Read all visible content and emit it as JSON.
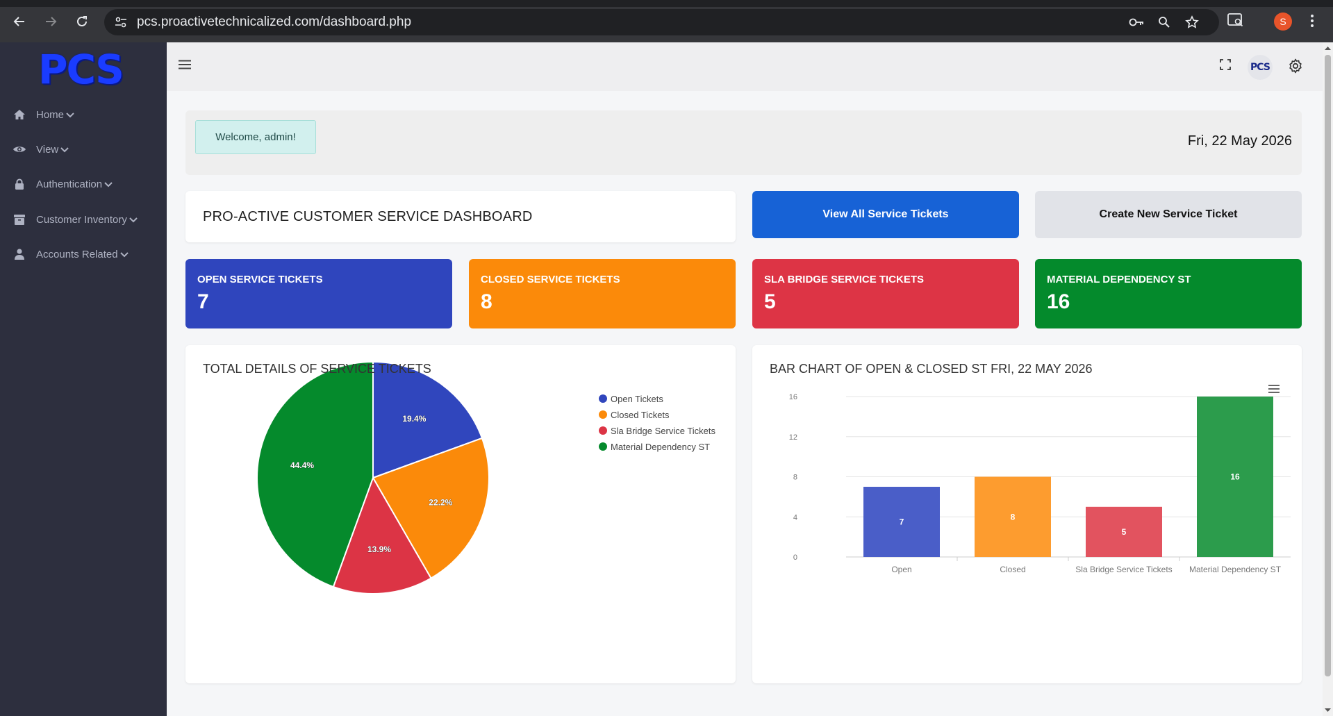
{
  "browser": {
    "url": "pcs.proactivetechnicalized.com/dashboard.php",
    "profile_initial": "S"
  },
  "sidebar": {
    "logo": "PCS",
    "items": [
      {
        "label": "Home",
        "icon": "home-icon"
      },
      {
        "label": "View",
        "icon": "eye-icon"
      },
      {
        "label": "Authentication",
        "icon": "lock-icon"
      },
      {
        "label": "Customer Inventory",
        "icon": "archive-icon"
      },
      {
        "label": "Accounts Related",
        "icon": "user-icon"
      }
    ]
  },
  "topbar": {
    "avatar_text": "PCS"
  },
  "welcome": {
    "message": "Welcome, admin!",
    "date": "Fri, 22 May 2026"
  },
  "dashboard": {
    "title": "PRO-ACTIVE CUSTOMER SERVICE DASHBOARD",
    "view_all_label": "View All Service Tickets",
    "create_label": "Create New Service Ticket"
  },
  "stats": [
    {
      "label": "OPEN SERVICE TICKETS",
      "value": "7",
      "color": "#2f45bd"
    },
    {
      "label": "CLOSED SERVICE TICKETS",
      "value": "8",
      "color": "#fb8a0a"
    },
    {
      "label": "SLA BRIDGE SERVICE TICKETS",
      "value": "5",
      "color": "#dd3445"
    },
    {
      "label": "MATERIAL DEPENDENCY ST",
      "value": "16",
      "color": "#048a2c"
    }
  ],
  "pie_panel": {
    "title": "TOTAL DETAILS OF SERVICE TICKETS"
  },
  "bar_panel": {
    "title": "BAR CHART OF OPEN & CLOSED ST FRI, 22 MAY 2026"
  },
  "chart_data": [
    {
      "type": "pie",
      "title": "TOTAL DETAILS OF SERVICE TICKETS",
      "categories": [
        "Open Tickets",
        "Closed Tickets",
        "Sla Bridge Service Tickets",
        "Material Dependency ST"
      ],
      "values": [
        7,
        8,
        5,
        16
      ],
      "labels": [
        "19.4%",
        "22.2%",
        "13.9%",
        "44.4%"
      ],
      "colors": [
        "#3046bd",
        "#fb8a0a",
        "#dc3445",
        "#058a2c"
      ],
      "legend": "right"
    },
    {
      "type": "bar",
      "title": "BAR CHART OF OPEN & CLOSED ST FRI, 22 MAY 2026",
      "categories": [
        "Open",
        "Closed",
        "Sla Bridge Service Tickets",
        "Material Dependency ST"
      ],
      "values": [
        7,
        8,
        5,
        16
      ],
      "colors": [
        "#4a5ec8",
        "#fd9c2f",
        "#e2535f",
        "#2c9c4c"
      ],
      "ylim": [
        0,
        16
      ],
      "yticks": [
        "0",
        "4",
        "8",
        "12",
        "16"
      ],
      "grid": true
    }
  ]
}
